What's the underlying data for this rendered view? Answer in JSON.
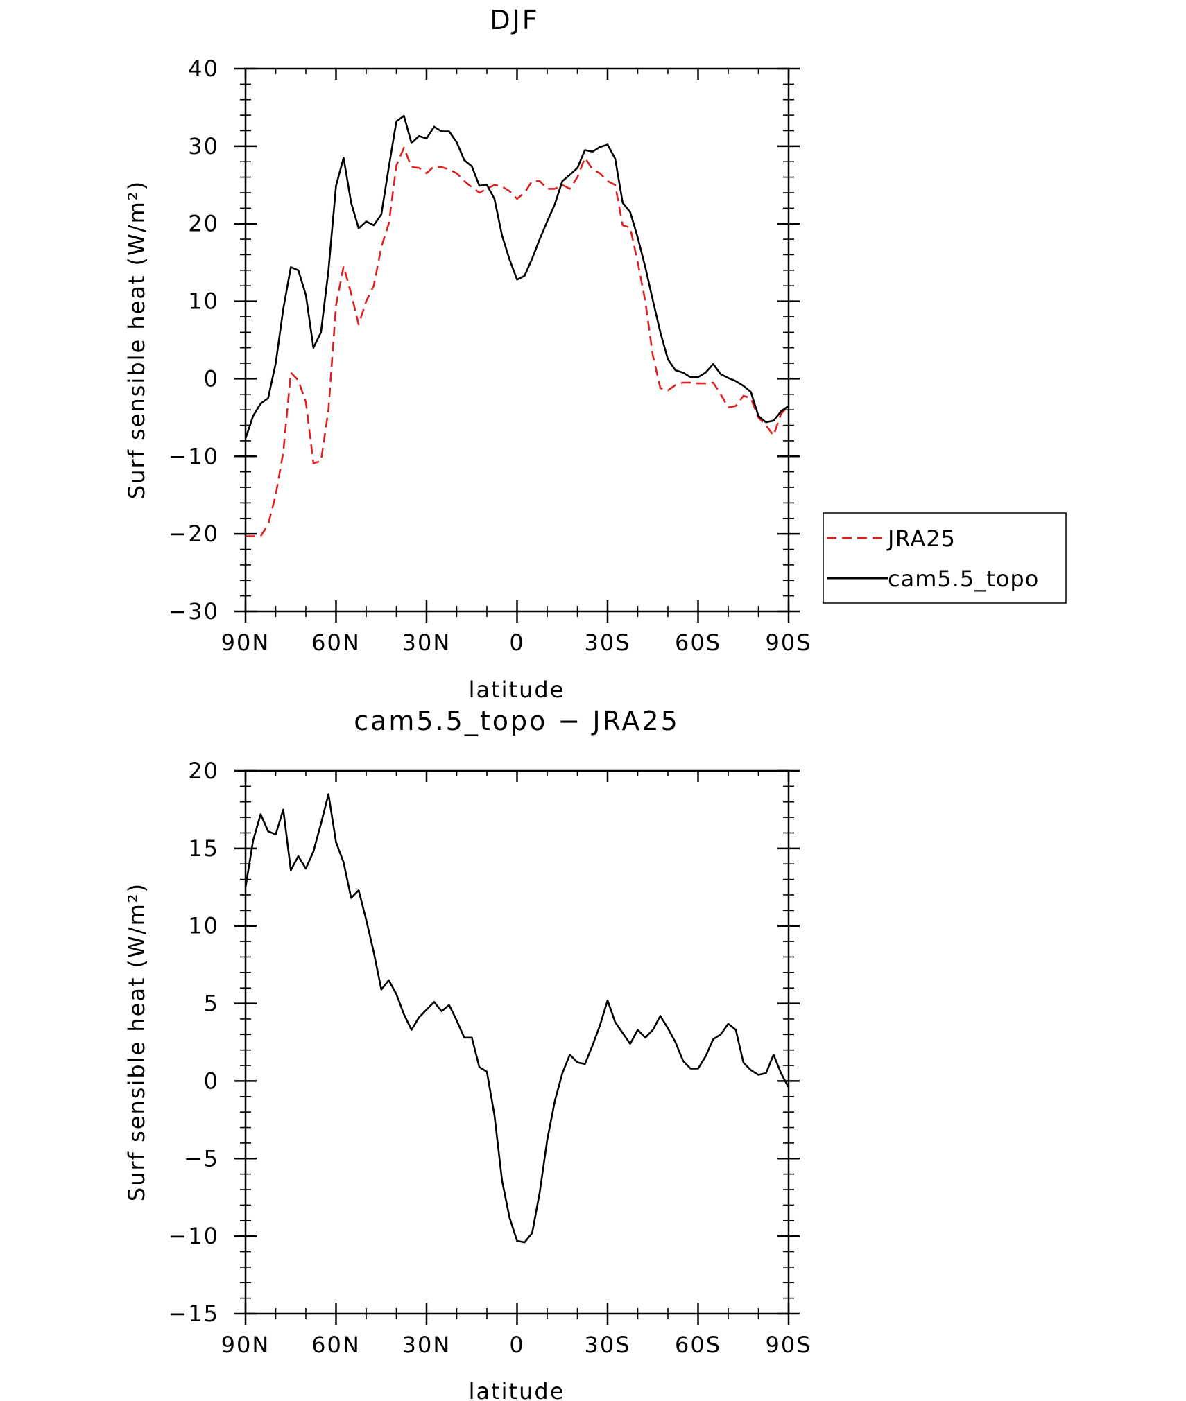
{
  "chart_data": [
    {
      "type": "line",
      "title": "DJF",
      "xlabel": "latitude",
      "ylabel": "Surf sensible heat (W/m²)",
      "xlim": [
        90,
        -90
      ],
      "ylim": [
        -30,
        40
      ],
      "xticks": [
        90,
        60,
        30,
        0,
        -30,
        -60,
        -90
      ],
      "xtick_labels": [
        "90N",
        "60N",
        "30N",
        "0",
        "30S",
        "60S",
        "90S"
      ],
      "yticks": [
        40,
        30,
        20,
        10,
        0,
        -10,
        -20,
        -30
      ],
      "ytick_labels": [
        "40",
        "30",
        "20",
        "10",
        "0",
        "−10",
        "−20",
        "−30"
      ],
      "legend": {
        "position": "right"
      },
      "series": [
        {
          "name": "JRA25",
          "color": "#e02020",
          "dash": "dashed",
          "x": [
            90,
            87.5,
            85,
            82.5,
            80,
            77.5,
            75,
            72.5,
            70,
            67.5,
            65,
            62.5,
            60,
            57.5,
            55,
            52.5,
            50,
            47.5,
            45,
            42.5,
            40,
            37.5,
            35,
            32.5,
            30,
            27.5,
            25,
            22.5,
            20,
            17.5,
            15,
            12.5,
            10,
            7.5,
            5,
            2.5,
            0,
            -2.5,
            -5,
            -7.5,
            -10,
            -12.5,
            -15,
            -17.5,
            -20,
            -22.5,
            -25,
            -27.5,
            -30,
            -32.5,
            -35,
            -37.5,
            -40,
            -42.5,
            -45,
            -47.5,
            -50,
            -52.5,
            -55,
            -57.5,
            -60,
            -62.5,
            -65,
            -67.5,
            -70,
            -72.5,
            -75,
            -77.5,
            -80,
            -82.5,
            -85,
            -87.5,
            -90
          ],
          "y": [
            -20.3,
            -20.3,
            -20.3,
            -18.8,
            -15,
            -9.5,
            0.8,
            -0.2,
            -3,
            -10.9,
            -10.6,
            -4,
            9.5,
            14.5,
            11,
            7,
            10,
            12,
            17,
            20,
            27.5,
            29.8,
            27.3,
            27.2,
            26.5,
            27.4,
            27.3,
            27,
            26.5,
            25.5,
            24.7,
            24,
            24.5,
            25,
            24.8,
            24.2,
            23.2,
            24,
            25.5,
            25.5,
            24.5,
            24.5,
            25,
            24.5,
            26,
            28.5,
            27,
            26.5,
            25.5,
            25,
            19.8,
            19.5,
            15,
            10,
            3,
            -1.2,
            -1.5,
            -0.8,
            -0.5,
            -0.5,
            -0.6,
            -0.6,
            -0.5,
            -2,
            -3.7,
            -3.5,
            -2.2,
            -2.5,
            -5,
            -6,
            -7.3,
            -4.5,
            -3.5
          ]
        },
        {
          "name": "cam5.5_topo",
          "color": "#000000",
          "dash": "solid",
          "x": [
            90,
            87.5,
            85,
            82.5,
            80,
            77.5,
            75,
            72.5,
            70,
            67.5,
            65,
            62.5,
            60,
            57.5,
            55,
            52.5,
            50,
            47.5,
            45,
            42.5,
            40,
            37.5,
            35,
            32.5,
            30,
            27.5,
            25,
            22.5,
            20,
            17.5,
            15,
            12.5,
            10,
            7.5,
            5,
            2.5,
            0,
            -2.5,
            -5,
            -7.5,
            -10,
            -12.5,
            -15,
            -17.5,
            -20,
            -22.5,
            -25,
            -27.5,
            -30,
            -32.5,
            -35,
            -37.5,
            -40,
            -42.5,
            -45,
            -47.5,
            -50,
            -52.5,
            -55,
            -57.5,
            -60,
            -62.5,
            -65,
            -67.5,
            -70,
            -72.5,
            -75,
            -77.5,
            -80,
            -82.5,
            -85,
            -87.5,
            -90
          ],
          "y": [
            -7.7,
            -4.8,
            -3.2,
            -2.5,
            2,
            9,
            14.4,
            14,
            10.8,
            4,
            6,
            14,
            24.9,
            28.5,
            22.7,
            19.4,
            20.3,
            19.8,
            21.2,
            27.3,
            33.2,
            33.9,
            30.4,
            31.3,
            31,
            32.5,
            31.9,
            31.9,
            30.5,
            28.2,
            27.4,
            24.9,
            25,
            23.2,
            18.5,
            15.4,
            12.8,
            13.3,
            15.5,
            18,
            20.3,
            22.5,
            25.5,
            26.3,
            27.2,
            29.5,
            29.3,
            29.9,
            30.2,
            28.4,
            22.7,
            21.5,
            18.2,
            14.4,
            10.1,
            6,
            2.5,
            1.1,
            0.8,
            0.2,
            0.2,
            0.8,
            1.9,
            0.6,
            0.1,
            -0.3,
            -0.9,
            -1.7,
            -4.8,
            -5.6,
            -5.4,
            -4.2,
            -3.5
          ]
        }
      ]
    },
    {
      "type": "line",
      "title": "cam5.5_topo − JRA25",
      "xlabel": "latitude",
      "ylabel": "Surf sensible heat (W/m²)",
      "xlim": [
        90,
        -90
      ],
      "ylim": [
        -15,
        20
      ],
      "xticks": [
        90,
        60,
        30,
        0,
        -30,
        -60,
        -90
      ],
      "xtick_labels": [
        "90N",
        "60N",
        "30N",
        "0",
        "30S",
        "60S",
        "90S"
      ],
      "yticks": [
        20,
        15,
        10,
        5,
        0,
        -5,
        -10,
        -15
      ],
      "ytick_labels": [
        "20",
        "15",
        "10",
        "5",
        "0",
        "−5",
        "−10",
        "−15"
      ],
      "series": [
        {
          "color": "#000000",
          "dash": "solid",
          "x": [
            90,
            87.5,
            85,
            82.5,
            80,
            77.5,
            75,
            72.5,
            70,
            67.5,
            65,
            62.5,
            60,
            57.5,
            55,
            52.5,
            50,
            47.5,
            45,
            42.5,
            40,
            37.5,
            35,
            32.5,
            30,
            27.5,
            25,
            22.5,
            20,
            17.5,
            15,
            12.5,
            10,
            7.5,
            5,
            2.5,
            0,
            -2.5,
            -5,
            -7.5,
            -10,
            -12.5,
            -15,
            -17.5,
            -20,
            -22.5,
            -25,
            -27.5,
            -30,
            -32.5,
            -35,
            -37.5,
            -40,
            -42.5,
            -45,
            -47.5,
            -50,
            -52.5,
            -55,
            -57.5,
            -60,
            -62.5,
            -65,
            -67.5,
            -70,
            -72.5,
            -75,
            -77.5,
            -80,
            -82.5,
            -85,
            -87.5,
            -90
          ],
          "y": [
            12.5,
            15.5,
            17.2,
            16.1,
            15.9,
            17.5,
            13.6,
            14.5,
            13.7,
            14.8,
            16.6,
            18.5,
            15.4,
            14.1,
            11.8,
            12.3,
            10.4,
            8.3,
            5.9,
            6.5,
            5.6,
            4.3,
            3.3,
            4.1,
            4.6,
            5.1,
            4.5,
            4.9,
            3.9,
            2.8,
            2.8,
            0.9,
            0.6,
            -2.2,
            -6.4,
            -8.8,
            -10.3,
            -10.4,
            -9.8,
            -7.2,
            -3.8,
            -1.3,
            0.5,
            1.7,
            1.2,
            1.1,
            2.3,
            3.6,
            5.2,
            3.8,
            3.1,
            2.4,
            3.3,
            2.8,
            3.3,
            4.2,
            3.4,
            2.5,
            1.3,
            0.8,
            0.8,
            1.6,
            2.7,
            3,
            3.7,
            3.3,
            1.2,
            0.7,
            0.4,
            0.5,
            1.7,
            0.5,
            -0.4
          ]
        }
      ]
    }
  ]
}
